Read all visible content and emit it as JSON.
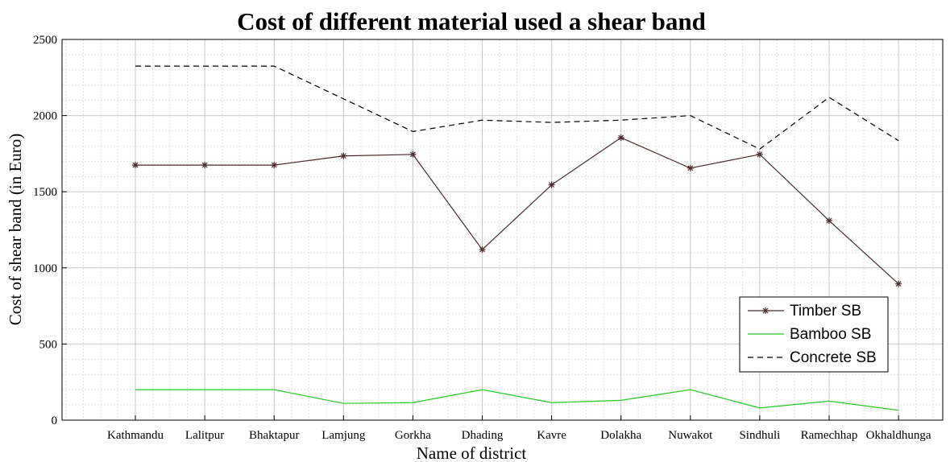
{
  "chart_data": {
    "type": "line",
    "title": "Cost of different material used a shear band",
    "xlabel": "Name of district",
    "ylabel": "Cost of shear band (in Euro)",
    "categories": [
      "Kathmandu",
      "Lalitpur",
      "Bhaktapur",
      "Lamjung",
      "Gorkha",
      "Dhading",
      "Kavre",
      "Dolakha",
      "Nuwakot",
      "Sindhuli",
      "Ramechhap",
      "Okhaldhunga"
    ],
    "ylim": [
      0,
      2500
    ],
    "yticks": [
      0,
      500,
      1000,
      1500,
      2000,
      2500
    ],
    "grid": true,
    "legend_position": "bottom-right",
    "series": [
      {
        "name": "Timber SB",
        "color": "#4a2a2a",
        "style": "solid-star",
        "values": [
          1675,
          1675,
          1675,
          1735,
          1745,
          1120,
          1545,
          1855,
          1655,
          1745,
          1310,
          895
        ]
      },
      {
        "name": "Bamboo SB",
        "color": "#22cc22",
        "style": "solid",
        "values": [
          200,
          200,
          200,
          110,
          115,
          200,
          115,
          130,
          200,
          80,
          125,
          65
        ]
      },
      {
        "name": "Concrete SB",
        "color": "#000000",
        "style": "dashed",
        "values": [
          2325,
          2325,
          2325,
          2110,
          1895,
          1970,
          1955,
          1970,
          2000,
          1780,
          2120,
          1835
        ]
      }
    ]
  }
}
